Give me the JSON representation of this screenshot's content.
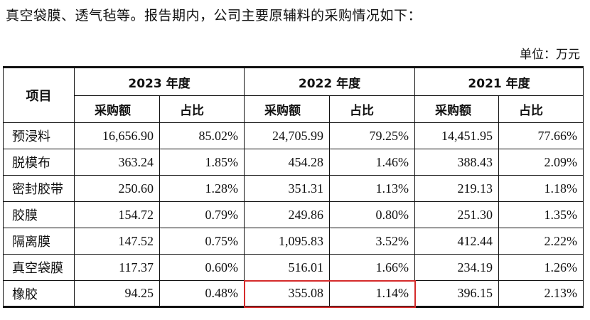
{
  "intro_text": "真空袋膜、透气毡等。报告期内，公司主要原辅料的采购情况如下：",
  "unit_label": "单位：万元",
  "table": {
    "item_header": "项目",
    "years": [
      "2023 年度",
      "2022 年度",
      "2021 年度"
    ],
    "sub_headers": [
      "采购额",
      "占比"
    ],
    "rows": [
      {
        "name": "预浸料",
        "cells": [
          "16,656.90",
          "85.02%",
          "24,705.99",
          "79.25%",
          "14,451.95",
          "77.66%"
        ]
      },
      {
        "name": "脱模布",
        "cells": [
          "363.24",
          "1.85%",
          "454.28",
          "1.46%",
          "388.43",
          "2.09%"
        ]
      },
      {
        "name": "密封胶带",
        "cells": [
          "250.60",
          "1.28%",
          "351.31",
          "1.13%",
          "219.13",
          "1.18%"
        ]
      },
      {
        "name": "胶膜",
        "cells": [
          "154.72",
          "0.79%",
          "249.86",
          "0.80%",
          "251.30",
          "1.35%"
        ]
      },
      {
        "name": "隔离膜",
        "cells": [
          "147.52",
          "0.75%",
          "1,095.83",
          "3.52%",
          "412.44",
          "2.22%"
        ]
      },
      {
        "name": "真空袋膜",
        "cells": [
          "117.37",
          "0.60%",
          "516.01",
          "1.66%",
          "234.19",
          "1.26%"
        ]
      },
      {
        "name": "橡胶",
        "cells": [
          "94.25",
          "0.48%",
          "355.08",
          "1.14%",
          "396.15",
          "2.13%"
        ]
      }
    ]
  },
  "highlight_color": "#d52b2b"
}
